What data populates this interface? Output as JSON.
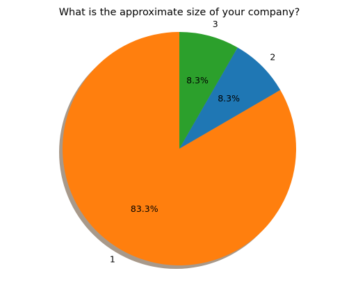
{
  "chart_data": {
    "type": "pie",
    "title": "What is the approximate size of your company?",
    "slices": [
      {
        "label": "1",
        "value": 83.3,
        "percent_label": "83.3%",
        "color": "#ff7f0e"
      },
      {
        "label": "2",
        "value": 8.3,
        "percent_label": "8.3%",
        "color": "#1f77b4"
      },
      {
        "label": "3",
        "value": 8.3,
        "percent_label": "8.3%",
        "color": "#2ca02c"
      }
    ],
    "start_angle_deg": 90,
    "direction": "counterclockwise",
    "shadow": true,
    "shadow_color": "#a8998a",
    "legend": "none",
    "grid": false
  }
}
